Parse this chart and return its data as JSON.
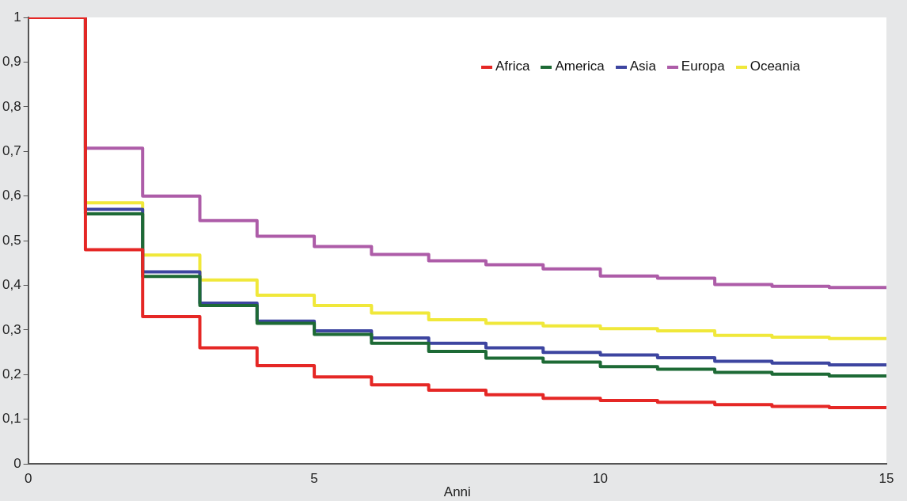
{
  "chart_data": {
    "type": "step",
    "xlabel": "Anni",
    "x": [
      0,
      1,
      2,
      3,
      4,
      5,
      6,
      7,
      8,
      9,
      10,
      11,
      12,
      13,
      14,
      15
    ],
    "xlim": [
      0,
      15
    ],
    "xticks": [
      0,
      5,
      10,
      15
    ],
    "ylim": [
      0,
      1
    ],
    "yticks": [
      0,
      {
        "value": 0.1,
        "label": "0,1"
      },
      {
        "value": 0.2,
        "label": "0,2"
      },
      {
        "value": 0.3,
        "label": "0,3"
      },
      {
        "value": 0.4,
        "label": "0,4"
      },
      {
        "value": 0.5,
        "label": "0,5"
      },
      {
        "value": 0.6,
        "label": "0,6"
      },
      {
        "value": 0.7,
        "label": "0,7"
      },
      {
        "value": 0.8,
        "label": "0,8"
      },
      {
        "value": 0.9,
        "label": "0,9"
      },
      1
    ],
    "grid": false,
    "legend": "top right",
    "marker": "none",
    "line_style": "solid",
    "series": [
      {
        "name": "Africa",
        "color": "#e52725",
        "values": [
          1,
          0.48,
          0.33,
          0.26,
          0.22,
          0.195,
          0.177,
          0.165,
          0.155,
          0.147,
          0.142,
          0.138,
          0.133,
          0.129,
          0.126,
          0.124
        ]
      },
      {
        "name": "America",
        "color": "#1d6a35",
        "values": [
          1,
          0.56,
          0.42,
          0.355,
          0.315,
          0.29,
          0.27,
          0.252,
          0.237,
          0.228,
          0.218,
          0.212,
          0.205,
          0.201,
          0.197,
          0.195
        ]
      },
      {
        "name": "Asia",
        "color": "#3d45a0",
        "values": [
          1,
          0.57,
          0.43,
          0.36,
          0.32,
          0.298,
          0.282,
          0.27,
          0.26,
          0.25,
          0.244,
          0.238,
          0.23,
          0.226,
          0.222,
          0.22
        ]
      },
      {
        "name": "Europa",
        "color": "#ad5ca8",
        "values": [
          1,
          0.707,
          0.6,
          0.545,
          0.51,
          0.487,
          0.469,
          0.455,
          0.446,
          0.437,
          0.421,
          0.416,
          0.402,
          0.398,
          0.395,
          0.392
        ]
      },
      {
        "name": "Oceania",
        "color": "#f0e83a",
        "values": [
          1,
          0.585,
          0.468,
          0.412,
          0.378,
          0.355,
          0.338,
          0.323,
          0.315,
          0.309,
          0.303,
          0.298,
          0.288,
          0.284,
          0.281,
          0.278
        ]
      }
    ]
  }
}
